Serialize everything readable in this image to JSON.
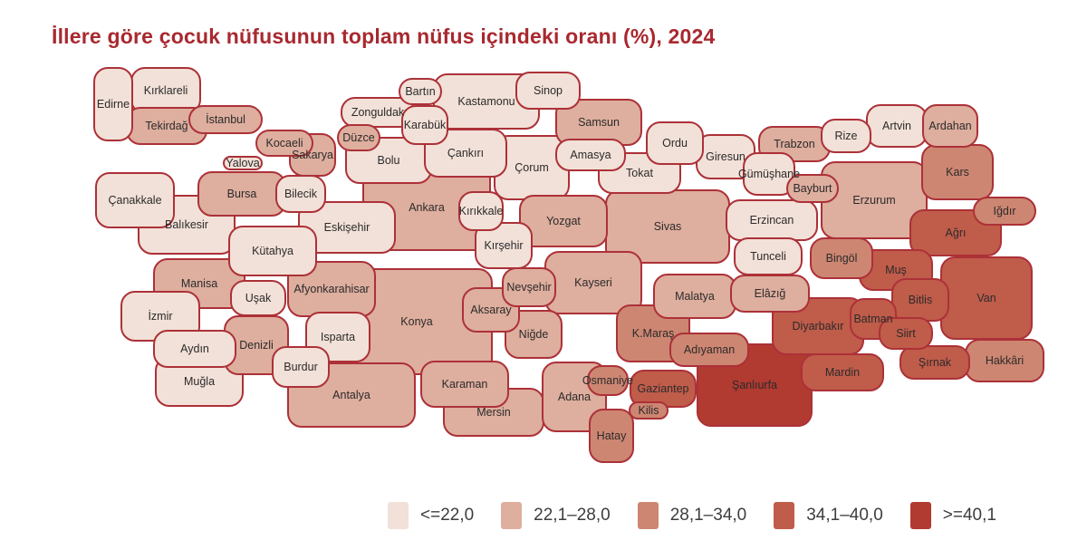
{
  "title": "İllere göre çocuk nüfusunun toplam nüfus içindeki oranı (%), 2024",
  "colors": {
    "title": "#a8292f",
    "province_border": "#ac3138",
    "province_label": "#2b2b2b",
    "legend_label": "#3d3d3d",
    "background": "#ffffff"
  },
  "legend": {
    "items": [
      {
        "label": "<=22,0",
        "color": "#f2e1d8"
      },
      {
        "label": "22,1–28,0",
        "color": "#deae9e"
      },
      {
        "label": "28,1–34,0",
        "color": "#cd8672"
      },
      {
        "label": "34,1–40,0",
        "color": "#c05c4a"
      },
      {
        "label": ">=40,1",
        "color": "#b13a31"
      }
    ]
  },
  "chart_data": {
    "type": "choropleth",
    "title": "İllere göre çocuk nüfusunun toplam nüfus içindeki oranı (%), 2024",
    "unit": "%",
    "year": "2024",
    "bins": [
      "<=22,0",
      "22,1–28,0",
      "28,1–34,0",
      "34,1–40,0",
      ">=40,1"
    ],
    "bin_colors": [
      "#f2e1d8",
      "#deae9e",
      "#cd8672",
      "#c05c4a",
      "#b13a31"
    ],
    "province_fields": [
      "name",
      "x",
      "y",
      "w",
      "h",
      "bin"
    ],
    "provinces": [
      [
        "Edirne",
        125,
        115,
        44,
        82,
        1
      ],
      [
        "Kırklareli",
        183,
        100,
        78,
        52,
        1
      ],
      [
        "Tekirdağ",
        184,
        139,
        90,
        42,
        2
      ],
      [
        "İstanbul",
        249,
        132,
        82,
        32,
        2
      ],
      [
        "Yalova",
        268,
        180,
        44,
        16,
        1
      ],
      [
        "Kocaeli",
        314,
        158,
        64,
        30,
        2
      ],
      [
        "Sakarya",
        345,
        171,
        52,
        48,
        2
      ],
      [
        "Düzce",
        396,
        152,
        48,
        30,
        2
      ],
      [
        "Bolu",
        429,
        177,
        96,
        52,
        1
      ],
      [
        "Zonguldak",
        417,
        124,
        82,
        34,
        1
      ],
      [
        "Bartın",
        464,
        101,
        48,
        30,
        1
      ],
      [
        "Karabük",
        469,
        138,
        52,
        44,
        1
      ],
      [
        "Kastamonu",
        537,
        112,
        118,
        62,
        1
      ],
      [
        "Sinop",
        605,
        100,
        72,
        42,
        1
      ],
      [
        "Çankırı",
        514,
        169,
        92,
        54,
        1
      ],
      [
        "Samsun",
        661,
        135,
        96,
        52,
        2
      ],
      [
        "Amasya",
        652,
        171,
        78,
        36,
        1
      ],
      [
        "Çorum",
        587,
        185,
        84,
        72,
        1
      ],
      [
        "Tokat",
        706,
        191,
        92,
        46,
        1
      ],
      [
        "Ordu",
        745,
        158,
        64,
        48,
        1
      ],
      [
        "Giresun",
        801,
        173,
        66,
        50,
        1
      ],
      [
        "Trabzon",
        877,
        159,
        80,
        40,
        2
      ],
      [
        "Rize",
        934,
        150,
        56,
        38,
        1
      ],
      [
        "Artvin",
        990,
        139,
        68,
        48,
        1
      ],
      [
        "Ardahan",
        1049,
        139,
        62,
        48,
        2
      ],
      [
        "Kars",
        1057,
        190,
        80,
        62,
        3
      ],
      [
        "Iğdır",
        1109,
        233,
        70,
        32,
        3
      ],
      [
        "Ağrı",
        1055,
        257,
        102,
        52,
        4
      ],
      [
        "Gümüşhane",
        849,
        192,
        58,
        48,
        1
      ],
      [
        "Bayburt",
        897,
        208,
        58,
        32,
        2
      ],
      [
        "Erzurum",
        965,
        221,
        118,
        86,
        2
      ],
      [
        "Erzincan",
        852,
        243,
        102,
        46,
        1
      ],
      [
        "Tunceli",
        848,
        283,
        76,
        42,
        1
      ],
      [
        "Bingöl",
        929,
        285,
        70,
        46,
        3
      ],
      [
        "Muş",
        989,
        298,
        82,
        46,
        4
      ],
      [
        "Bitlis",
        1016,
        331,
        64,
        48,
        4
      ],
      [
        "Van",
        1089,
        329,
        102,
        92,
        4
      ],
      [
        "Hakkâri",
        1109,
        398,
        88,
        48,
        3
      ],
      [
        "Şırnak",
        1032,
        400,
        78,
        38,
        4
      ],
      [
        "Siirt",
        1000,
        368,
        60,
        36,
        4
      ],
      [
        "Batman",
        964,
        352,
        52,
        46,
        4
      ],
      [
        "Mardin",
        930,
        411,
        92,
        42,
        4
      ],
      [
        "Diyarbakır",
        903,
        360,
        102,
        64,
        4
      ],
      [
        "Elâzığ",
        850,
        324,
        88,
        42,
        2
      ],
      [
        "Malatya",
        767,
        327,
        92,
        50,
        2
      ],
      [
        "Adıyaman",
        783,
        386,
        88,
        38,
        3
      ],
      [
        "Şanlıurfa",
        833,
        425,
        128,
        92,
        5
      ],
      [
        "Gaziantep",
        732,
        429,
        74,
        42,
        4
      ],
      [
        "Kilis",
        716,
        453,
        44,
        20,
        3
      ],
      [
        "Osmaniye",
        671,
        420,
        46,
        34,
        3
      ],
      [
        "Hatay",
        675,
        481,
        50,
        60,
        3
      ],
      [
        "K.Maraş",
        721,
        368,
        82,
        64,
        3
      ],
      [
        "Kayseri",
        655,
        312,
        108,
        70,
        2
      ],
      [
        "Sivas",
        737,
        250,
        138,
        82,
        2
      ],
      [
        "Yozgat",
        622,
        244,
        98,
        58,
        2
      ],
      [
        "Kırşehir",
        556,
        271,
        64,
        52,
        1
      ],
      [
        "Kırıkkale",
        531,
        233,
        50,
        44,
        1
      ],
      [
        "Ankara",
        471,
        229,
        142,
        96,
        2
      ],
      [
        "Eskişehir",
        383,
        251,
        108,
        58,
        1
      ],
      [
        "Bilecik",
        332,
        214,
        56,
        42,
        1
      ],
      [
        "Bursa",
        267,
        214,
        98,
        50,
        2
      ],
      [
        "Çanakkale",
        149,
        221,
        88,
        62,
        1
      ],
      [
        "Balıkesir",
        206,
        248,
        108,
        66,
        1
      ],
      [
        "Kütahya",
        301,
        277,
        98,
        56,
        1
      ],
      [
        "Manisa",
        220,
        313,
        102,
        56,
        2
      ],
      [
        "İzmir",
        177,
        349,
        88,
        56,
        1
      ],
      [
        "Uşak",
        285,
        329,
        62,
        40,
        1
      ],
      [
        "Afyonkarahisar",
        366,
        319,
        98,
        62,
        2
      ],
      [
        "Aydın",
        215,
        385,
        92,
        42,
        1
      ],
      [
        "Denizli",
        283,
        381,
        72,
        66,
        2
      ],
      [
        "Muğla",
        220,
        421,
        98,
        56,
        1
      ],
      [
        "Isparta",
        373,
        372,
        72,
        56,
        1
      ],
      [
        "Burdur",
        332,
        405,
        64,
        46,
        1
      ],
      [
        "Antalya",
        388,
        436,
        142,
        72,
        2
      ],
      [
        "Konya",
        460,
        355,
        168,
        118,
        2
      ],
      [
        "Karaman",
        513,
        424,
        98,
        52,
        2
      ],
      [
        "Mersin",
        545,
        455,
        112,
        54,
        2
      ],
      [
        "Aksaray",
        542,
        342,
        64,
        50,
        2
      ],
      [
        "Nevşehir",
        584,
        317,
        60,
        44,
        2
      ],
      [
        "Niğde",
        589,
        369,
        64,
        54,
        2
      ],
      [
        "Adana",
        634,
        438,
        72,
        78,
        2
      ]
    ]
  }
}
